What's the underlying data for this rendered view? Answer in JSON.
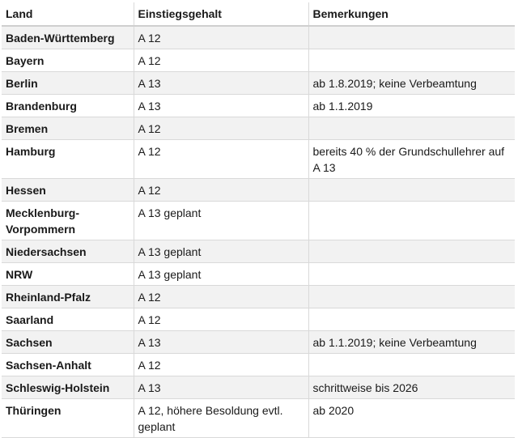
{
  "table": {
    "headers": [
      "Land",
      "Einstiegsgehalt",
      "Bemerkungen"
    ],
    "rows": [
      {
        "land": "Baden-Württemberg",
        "salary": "A 12",
        "note": ""
      },
      {
        "land": "Bayern",
        "salary": "A 12",
        "note": ""
      },
      {
        "land": "Berlin",
        "salary": "A 13",
        "note": "ab 1.8.2019; keine Verbeamtung"
      },
      {
        "land": "Brandenburg",
        "salary": "A 13",
        "note": "ab 1.1.2019"
      },
      {
        "land": "Bremen",
        "salary": "A 12",
        "note": ""
      },
      {
        "land": "Hamburg",
        "salary": "A 12",
        "note": "bereits 40 % der Grundschullehrer auf A 13"
      },
      {
        "land": "Hessen",
        "salary": "A 12",
        "note": ""
      },
      {
        "land": "Mecklenburg-Vorpommern",
        "salary": "A 13 geplant",
        "note": ""
      },
      {
        "land": "Niedersachsen",
        "salary": "A 13 geplant",
        "note": ""
      },
      {
        "land": "NRW",
        "salary": "A 13 geplant",
        "note": ""
      },
      {
        "land": "Rheinland-Pfalz",
        "salary": "A 12",
        "note": ""
      },
      {
        "land": "Saarland",
        "salary": "A 12",
        "note": ""
      },
      {
        "land": "Sachsen",
        "salary": "A 13",
        "note": "ab 1.1.2019; keine Verbeamtung"
      },
      {
        "land": "Sachsen-Anhalt",
        "salary": "A 12",
        "note": ""
      },
      {
        "land": "Schleswig-Holstein",
        "salary": "A 13",
        "note": "schrittweise bis 2026"
      },
      {
        "land": "Thüringen",
        "salary": "A 12, höhere Besoldung evtl. geplant",
        "note": "ab 2020"
      }
    ]
  }
}
